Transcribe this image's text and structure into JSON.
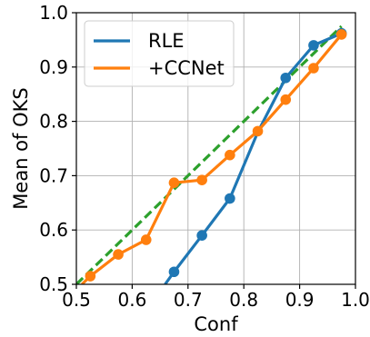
{
  "chart_data": {
    "type": "line",
    "title": "",
    "xlabel": "Conf",
    "ylabel": "Mean of OKS",
    "xlim": [
      0.5,
      1.0
    ],
    "ylim": [
      0.5,
      1.0
    ],
    "xticks": [
      0.5,
      0.6,
      0.7,
      0.8,
      0.9,
      1.0
    ],
    "yticks": [
      0.5,
      0.6,
      0.7,
      0.8,
      0.9,
      1.0
    ],
    "xtick_labels": [
      "0.5",
      "0.6",
      "0.7",
      "0.8",
      "0.9",
      "1.0"
    ],
    "ytick_labels": [
      "0.5",
      "0.6",
      "0.7",
      "0.8",
      "0.9",
      "1.0"
    ],
    "grid": true,
    "legend_position": "top-left",
    "series": [
      {
        "name": "RLE",
        "color": "#1f77b4",
        "x": [
          0.659,
          0.675,
          0.725,
          0.775,
          0.825,
          0.875,
          0.925,
          0.975
        ],
        "y": [
          0.5,
          0.523,
          0.59,
          0.658,
          0.78,
          0.88,
          0.94,
          0.962
        ],
        "markers": [
          false,
          true,
          true,
          true,
          false,
          true,
          true,
          true
        ]
      },
      {
        "name": "+CCNet",
        "color": "#ff7f0e",
        "x": [
          0.51,
          0.525,
          0.575,
          0.625,
          0.675,
          0.725,
          0.775,
          0.825,
          0.875,
          0.925,
          0.975
        ],
        "y": [
          0.5,
          0.515,
          0.555,
          0.582,
          0.687,
          0.692,
          0.738,
          0.782,
          0.84,
          0.898,
          0.96
        ],
        "markers": [
          false,
          true,
          true,
          true,
          true,
          true,
          true,
          true,
          true,
          true,
          true
        ]
      }
    ],
    "reference_line": {
      "style": "dashed",
      "color": "#2ca02c",
      "x": [
        0.5,
        0.975
      ],
      "y": [
        0.5,
        0.975
      ]
    }
  }
}
